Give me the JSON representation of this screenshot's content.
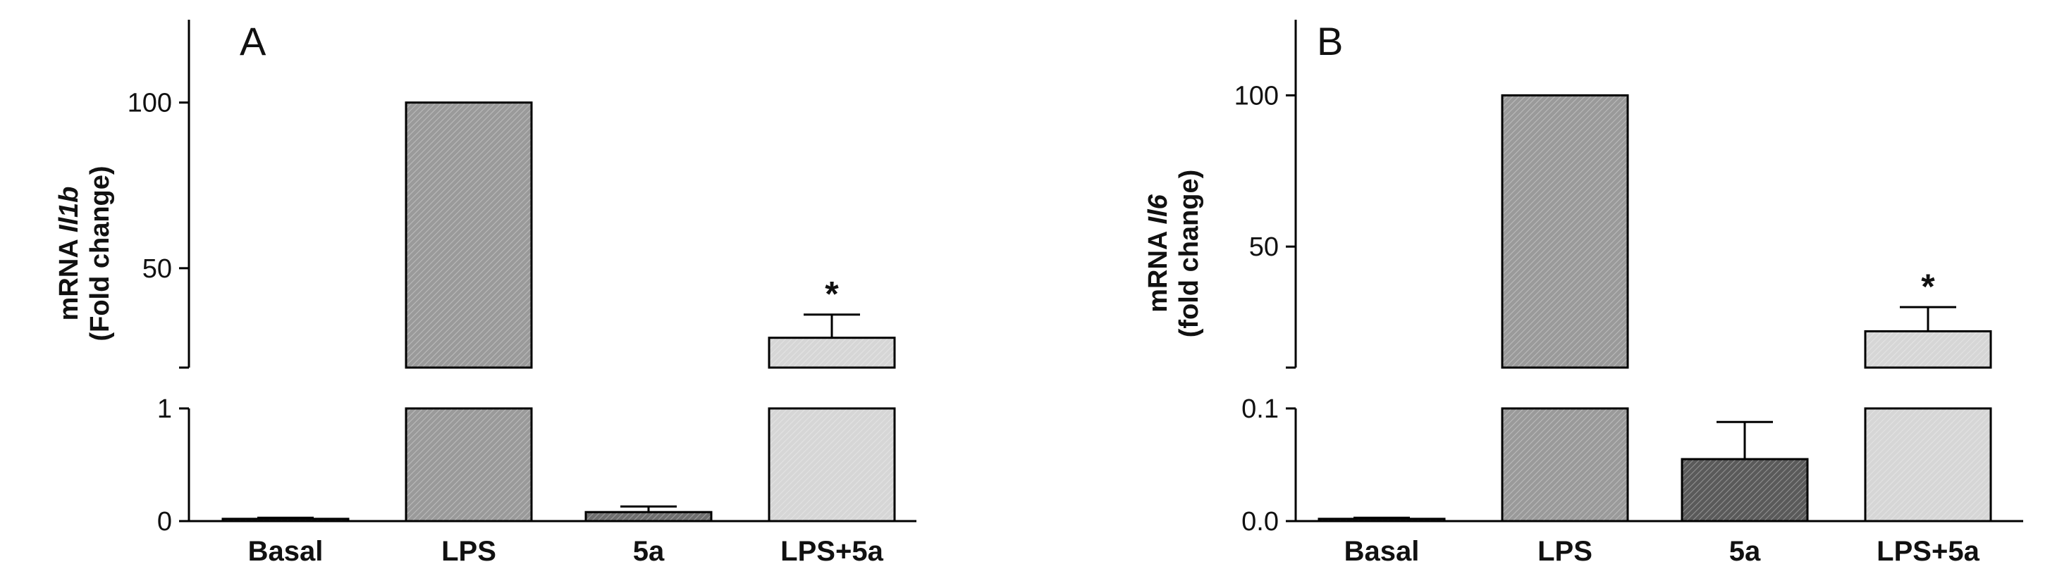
{
  "chart_data": [
    {
      "type": "bar",
      "panel_label": "A",
      "ylabel": "mRNA Il1b (Fold change)",
      "ylabel_line1_prefix": "mRNA ",
      "ylabel_line1_gene": "Il1b",
      "ylabel_line2": "(Fold change)",
      "axis_break": true,
      "lower_segment": {
        "ylim": [
          0,
          1
        ],
        "ticks": [
          "0",
          "1"
        ]
      },
      "upper_segment": {
        "ylim": [
          20,
          125
        ],
        "ticks": [
          "50",
          "100"
        ]
      },
      "categories": [
        "Basal",
        "LPS",
        "5a",
        "LPS+5a"
      ],
      "values": [
        0.02,
        100,
        0.08,
        29
      ],
      "errors": [
        0.01,
        0,
        0.05,
        7
      ],
      "annotations": [
        "",
        "",
        "",
        "*"
      ],
      "colors": [
        "#6f6f6f",
        "#9a9a9a",
        "#6f6f6f",
        "#d6d6d6"
      ],
      "grid": false
    },
    {
      "type": "bar",
      "panel_label": "B",
      "ylabel": "mRNA Il6 (fold change)",
      "ylabel_line1_prefix": "mRNA ",
      "ylabel_line1_gene": "Il6",
      "ylabel_line2": "(fold change)",
      "axis_break": true,
      "lower_segment": {
        "ylim": [
          0,
          0.1
        ],
        "ticks": [
          "0.0",
          "0.1"
        ]
      },
      "upper_segment": {
        "ylim": [
          10,
          125
        ],
        "ticks": [
          "50",
          "100"
        ]
      },
      "categories": [
        "Basal",
        "LPS",
        "5a",
        "LPS+5a"
      ],
      "values": [
        0.002,
        100,
        0.055,
        22
      ],
      "errors": [
        0.001,
        0,
        0.033,
        8
      ],
      "annotations": [
        "",
        "",
        "",
        "*"
      ],
      "colors": [
        "#6f6f6f",
        "#9a9a9a",
        "#5a5a5a",
        "#d6d6d6"
      ],
      "grid": false
    }
  ]
}
